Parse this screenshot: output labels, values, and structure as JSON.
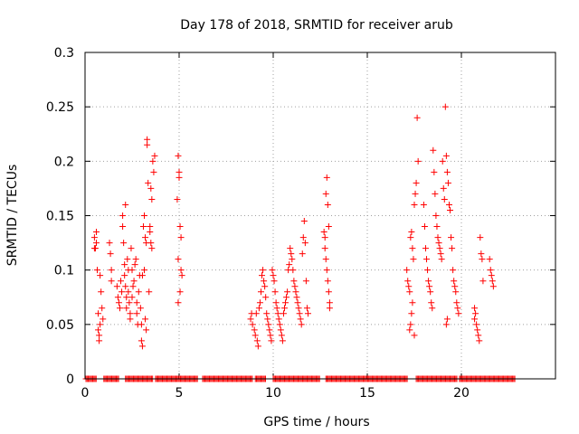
{
  "chart_data": {
    "type": "scatter",
    "title": "Day 178 of 2018, SRMTID for receiver arub",
    "xlabel": "GPS time / hours",
    "ylabel": "SRMTID / TECUs",
    "xlim": [
      0,
      25
    ],
    "ylim": [
      0,
      0.3
    ],
    "xticks": [
      0,
      5,
      10,
      15,
      20
    ],
    "xtick_labels": [
      "0",
      "5",
      "10",
      "15",
      "20"
    ],
    "yticks": [
      0,
      0.05,
      0.1,
      0.15,
      0.2,
      0.25,
      0.3
    ],
    "ytick_labels": [
      "0",
      "0.05",
      "0.1",
      "0.15",
      "0.2",
      "0.25",
      "0.3"
    ],
    "grid": true,
    "marker": "+",
    "series": [
      {
        "name": "SRMTID",
        "color": "#ff0000",
        "points": [
          [
            0.5,
            0.13
          ],
          [
            0.5,
            0.12
          ],
          [
            0.55,
            0.12
          ],
          [
            0.6,
            0.135
          ],
          [
            0.65,
            0.1
          ],
          [
            0.7,
            0.06
          ],
          [
            0.7,
            0.045
          ],
          [
            0.75,
            0.04
          ],
          [
            0.75,
            0.035
          ],
          [
            0.8,
            0.05
          ],
          [
            0.8,
            0.095
          ],
          [
            0.85,
            0.08
          ],
          [
            0.9,
            0.065
          ],
          [
            0.95,
            0.055
          ],
          [
            0.6,
            0.125
          ],
          [
            1.3,
            0.125
          ],
          [
            1.35,
            0.115
          ],
          [
            1.4,
            0.1
          ],
          [
            1.4,
            0.09
          ],
          [
            1.7,
            0.085
          ],
          [
            1.75,
            0.075
          ],
          [
            1.8,
            0.07
          ],
          [
            1.85,
            0.065
          ],
          [
            1.9,
            0.09
          ],
          [
            1.95,
            0.08
          ],
          [
            2.0,
            0.15
          ],
          [
            2.0,
            0.14
          ],
          [
            2.05,
            0.125
          ],
          [
            2.1,
            0.105
          ],
          [
            2.1,
            0.095
          ],
          [
            2.15,
            0.085
          ],
          [
            2.15,
            0.16
          ],
          [
            2.2,
            0.075
          ],
          [
            2.2,
            0.065
          ],
          [
            2.25,
            0.11
          ],
          [
            2.3,
            0.1
          ],
          [
            2.3,
            0.08
          ],
          [
            2.35,
            0.07
          ],
          [
            2.4,
            0.06
          ],
          [
            2.4,
            0.055
          ],
          [
            2.45,
            0.12
          ],
          [
            2.5,
            0.1
          ],
          [
            2.5,
            0.075
          ],
          [
            2.55,
            0.085
          ],
          [
            2.6,
            0.09
          ],
          [
            2.65,
            0.105
          ],
          [
            2.7,
            0.11
          ],
          [
            2.75,
            0.07
          ],
          [
            2.75,
            0.06
          ],
          [
            2.8,
            0.05
          ],
          [
            2.85,
            0.08
          ],
          [
            2.9,
            0.095
          ],
          [
            2.95,
            0.065
          ],
          [
            3.0,
            0.05
          ],
          [
            3.0,
            0.035
          ],
          [
            3.05,
            0.03
          ],
          [
            3.1,
            0.14
          ],
          [
            3.15,
            0.15
          ],
          [
            3.2,
            0.13
          ],
          [
            3.25,
            0.125
          ],
          [
            3.3,
            0.215
          ],
          [
            3.3,
            0.22
          ],
          [
            3.35,
            0.18
          ],
          [
            3.4,
            0.08
          ],
          [
            3.45,
            0.14
          ],
          [
            3.5,
            0.175
          ],
          [
            3.55,
            0.165
          ],
          [
            3.6,
            0.2
          ],
          [
            3.65,
            0.19
          ],
          [
            3.7,
            0.205
          ],
          [
            3.45,
            0.135
          ],
          [
            3.5,
            0.125
          ],
          [
            3.55,
            0.12
          ],
          [
            3.2,
            0.055
          ],
          [
            3.25,
            0.045
          ],
          [
            3.15,
            0.1
          ],
          [
            3.05,
            0.095
          ],
          [
            4.95,
            0.205
          ],
          [
            5.0,
            0.19
          ],
          [
            5.0,
            0.185
          ],
          [
            4.9,
            0.165
          ],
          [
            5.05,
            0.14
          ],
          [
            5.1,
            0.13
          ],
          [
            4.95,
            0.11
          ],
          [
            5.1,
            0.1
          ],
          [
            5.15,
            0.095
          ],
          [
            5.05,
            0.08
          ],
          [
            4.95,
            0.07
          ],
          [
            8.8,
            0.055
          ],
          [
            8.85,
            0.06
          ],
          [
            8.9,
            0.05
          ],
          [
            9.0,
            0.045
          ],
          [
            9.05,
            0.04
          ],
          [
            9.1,
            0.06
          ],
          [
            9.15,
            0.035
          ],
          [
            9.2,
            0.03
          ],
          [
            9.25,
            0.065
          ],
          [
            9.3,
            0.07
          ],
          [
            9.35,
            0.08
          ],
          [
            9.4,
            0.095
          ],
          [
            9.45,
            0.1
          ],
          [
            9.5,
            0.09
          ],
          [
            9.55,
            0.085
          ],
          [
            9.6,
            0.075
          ],
          [
            9.65,
            0.06
          ],
          [
            9.7,
            0.055
          ],
          [
            9.75,
            0.05
          ],
          [
            9.8,
            0.045
          ],
          [
            9.85,
            0.04
          ],
          [
            9.9,
            0.035
          ],
          [
            9.95,
            0.1
          ],
          [
            10.0,
            0.095
          ],
          [
            10.05,
            0.09
          ],
          [
            10.1,
            0.08
          ],
          [
            10.15,
            0.07
          ],
          [
            10.2,
            0.065
          ],
          [
            10.25,
            0.06
          ],
          [
            10.3,
            0.055
          ],
          [
            10.35,
            0.05
          ],
          [
            10.4,
            0.045
          ],
          [
            10.45,
            0.04
          ],
          [
            10.5,
            0.035
          ],
          [
            10.55,
            0.06
          ],
          [
            10.6,
            0.065
          ],
          [
            10.65,
            0.07
          ],
          [
            10.7,
            0.075
          ],
          [
            10.75,
            0.08
          ],
          [
            10.8,
            0.1
          ],
          [
            10.85,
            0.105
          ],
          [
            10.9,
            0.12
          ],
          [
            10.95,
            0.115
          ],
          [
            11.0,
            0.11
          ],
          [
            11.05,
            0.1
          ],
          [
            11.1,
            0.09
          ],
          [
            11.15,
            0.085
          ],
          [
            11.2,
            0.08
          ],
          [
            11.25,
            0.075
          ],
          [
            11.3,
            0.07
          ],
          [
            11.35,
            0.065
          ],
          [
            11.4,
            0.06
          ],
          [
            11.45,
            0.055
          ],
          [
            11.5,
            0.05
          ],
          [
            11.55,
            0.115
          ],
          [
            11.6,
            0.13
          ],
          [
            11.65,
            0.145
          ],
          [
            11.7,
            0.125
          ],
          [
            11.75,
            0.09
          ],
          [
            11.8,
            0.065
          ],
          [
            11.85,
            0.06
          ],
          [
            12.7,
            0.135
          ],
          [
            12.75,
            0.13
          ],
          [
            12.8,
            0.17
          ],
          [
            12.85,
            0.185
          ],
          [
            12.9,
            0.16
          ],
          [
            12.95,
            0.14
          ],
          [
            12.8,
            0.11
          ],
          [
            12.85,
            0.1
          ],
          [
            12.9,
            0.09
          ],
          [
            12.95,
            0.08
          ],
          [
            13.0,
            0.07
          ],
          [
            13.0,
            0.065
          ],
          [
            12.75,
            0.12
          ],
          [
            17.1,
            0.1
          ],
          [
            17.15,
            0.09
          ],
          [
            17.2,
            0.085
          ],
          [
            17.25,
            0.08
          ],
          [
            17.3,
            0.13
          ],
          [
            17.35,
            0.135
          ],
          [
            17.4,
            0.12
          ],
          [
            17.45,
            0.11
          ],
          [
            17.5,
            0.16
          ],
          [
            17.55,
            0.17
          ],
          [
            17.6,
            0.18
          ],
          [
            17.65,
            0.24
          ],
          [
            17.7,
            0.2
          ],
          [
            17.4,
            0.07
          ],
          [
            17.35,
            0.06
          ],
          [
            17.3,
            0.05
          ],
          [
            17.25,
            0.045
          ],
          [
            17.5,
            0.04
          ],
          [
            18.0,
            0.16
          ],
          [
            18.05,
            0.14
          ],
          [
            18.1,
            0.12
          ],
          [
            18.15,
            0.11
          ],
          [
            18.2,
            0.1
          ],
          [
            18.25,
            0.09
          ],
          [
            18.3,
            0.085
          ],
          [
            18.35,
            0.08
          ],
          [
            18.4,
            0.07
          ],
          [
            18.45,
            0.065
          ],
          [
            18.5,
            0.21
          ],
          [
            18.55,
            0.19
          ],
          [
            18.6,
            0.17
          ],
          [
            18.65,
            0.15
          ],
          [
            18.7,
            0.14
          ],
          [
            18.75,
            0.13
          ],
          [
            18.8,
            0.125
          ],
          [
            18.85,
            0.12
          ],
          [
            18.9,
            0.115
          ],
          [
            18.95,
            0.11
          ],
          [
            19.0,
            0.2
          ],
          [
            19.05,
            0.175
          ],
          [
            19.1,
            0.165
          ],
          [
            19.15,
            0.25
          ],
          [
            19.2,
            0.205
          ],
          [
            19.25,
            0.19
          ],
          [
            19.3,
            0.18
          ],
          [
            19.35,
            0.16
          ],
          [
            19.4,
            0.155
          ],
          [
            19.45,
            0.13
          ],
          [
            19.5,
            0.12
          ],
          [
            19.55,
            0.1
          ],
          [
            19.6,
            0.09
          ],
          [
            19.65,
            0.085
          ],
          [
            19.7,
            0.08
          ],
          [
            19.75,
            0.07
          ],
          [
            19.8,
            0.065
          ],
          [
            19.85,
            0.06
          ],
          [
            19.2,
            0.05
          ],
          [
            19.25,
            0.055
          ],
          [
            20.7,
            0.065
          ],
          [
            20.75,
            0.06
          ],
          [
            20.8,
            0.05
          ],
          [
            20.85,
            0.045
          ],
          [
            20.9,
            0.04
          ],
          [
            20.95,
            0.035
          ],
          [
            21.0,
            0.13
          ],
          [
            21.05,
            0.115
          ],
          [
            21.1,
            0.11
          ],
          [
            21.15,
            0.09
          ],
          [
            20.7,
            0.055
          ],
          [
            21.5,
            0.11
          ],
          [
            21.55,
            0.1
          ],
          [
            21.6,
            0.095
          ],
          [
            21.65,
            0.09
          ],
          [
            21.7,
            0.085
          ]
        ],
        "zero_ranges": [
          [
            0.05,
            0.6
          ],
          [
            1.0,
            1.8
          ],
          [
            2.15,
            3.6
          ],
          [
            3.75,
            6.0
          ],
          [
            6.25,
            8.9
          ],
          [
            9.05,
            9.6
          ],
          [
            10.0,
            12.5
          ],
          [
            12.8,
            17.15
          ],
          [
            17.6,
            19.8
          ],
          [
            19.9,
            22.85
          ]
        ]
      }
    ]
  }
}
